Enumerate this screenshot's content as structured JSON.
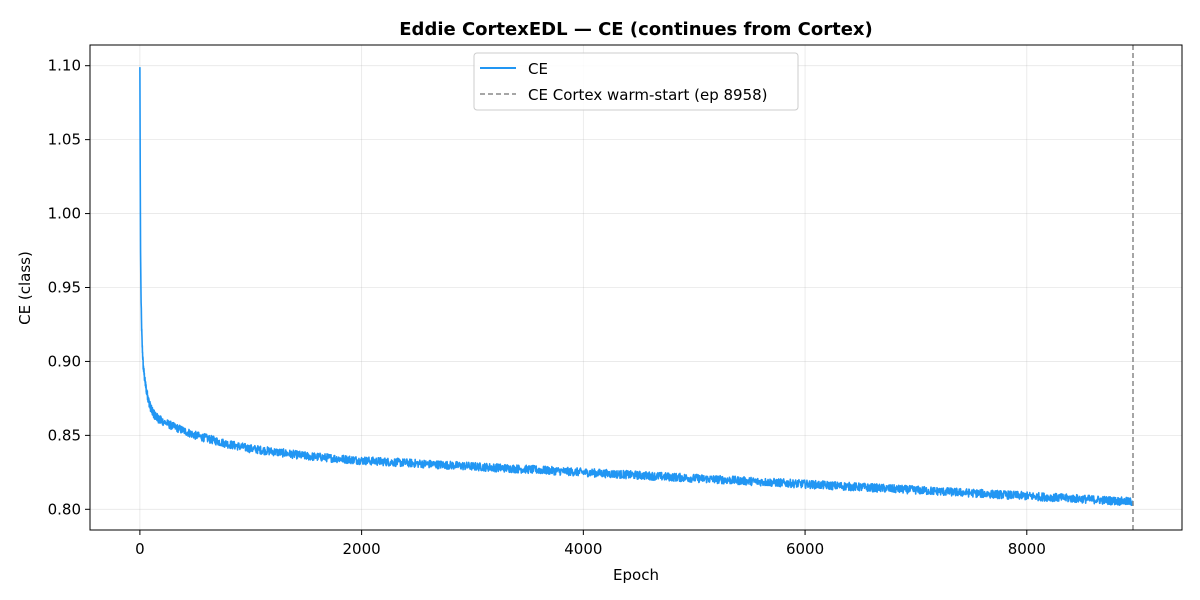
{
  "chart_data": {
    "type": "line",
    "title": "Eddie CortexEDL — CE (continues from Cortex)",
    "xlabel": "Epoch",
    "ylabel": "CE (class)",
    "xlim": [
      -450,
      9400
    ],
    "ylim": [
      0.786,
      1.114
    ],
    "xticks": [
      0,
      2000,
      4000,
      6000,
      8000
    ],
    "xtick_labels": [
      "0",
      "2000",
      "4000",
      "6000",
      "8000"
    ],
    "yticks": [
      0.8,
      0.85,
      0.9,
      0.95,
      1.0,
      1.05,
      1.1
    ],
    "ytick_labels": [
      "0.80",
      "0.85",
      "0.90",
      "0.95",
      "1.00",
      "1.05",
      "1.10"
    ],
    "grid": true,
    "legend": "top-center",
    "series": [
      {
        "name": "CE",
        "color": "#2196f3",
        "noise_amplitude": 0.0028,
        "x": [
          0,
          3,
          6,
          10,
          15,
          20,
          30,
          45,
          60,
          80,
          100,
          130,
          170,
          220,
          300,
          400,
          500,
          600,
          800,
          1000,
          1200,
          1500,
          2000,
          2500,
          3000,
          3500,
          4000,
          4500,
          5000,
          5500,
          6000,
          6500,
          7000,
          7500,
          8000,
          8500,
          8958
        ],
        "values": [
          1.099,
          1.03,
          0.975,
          0.945,
          0.925,
          0.912,
          0.897,
          0.887,
          0.88,
          0.873,
          0.868,
          0.864,
          0.861,
          0.859,
          0.856,
          0.853,
          0.85,
          0.848,
          0.844,
          0.841,
          0.839,
          0.836,
          0.833,
          0.831,
          0.829,
          0.827,
          0.825,
          0.823,
          0.821,
          0.819,
          0.817,
          0.815,
          0.813,
          0.811,
          0.809,
          0.807,
          0.805
        ]
      }
    ],
    "annotations": [
      {
        "type": "vline",
        "x": 8958,
        "label": "CE Cortex warm-start (ep 8958)",
        "color": "#888888",
        "style": "dashed"
      }
    ]
  }
}
